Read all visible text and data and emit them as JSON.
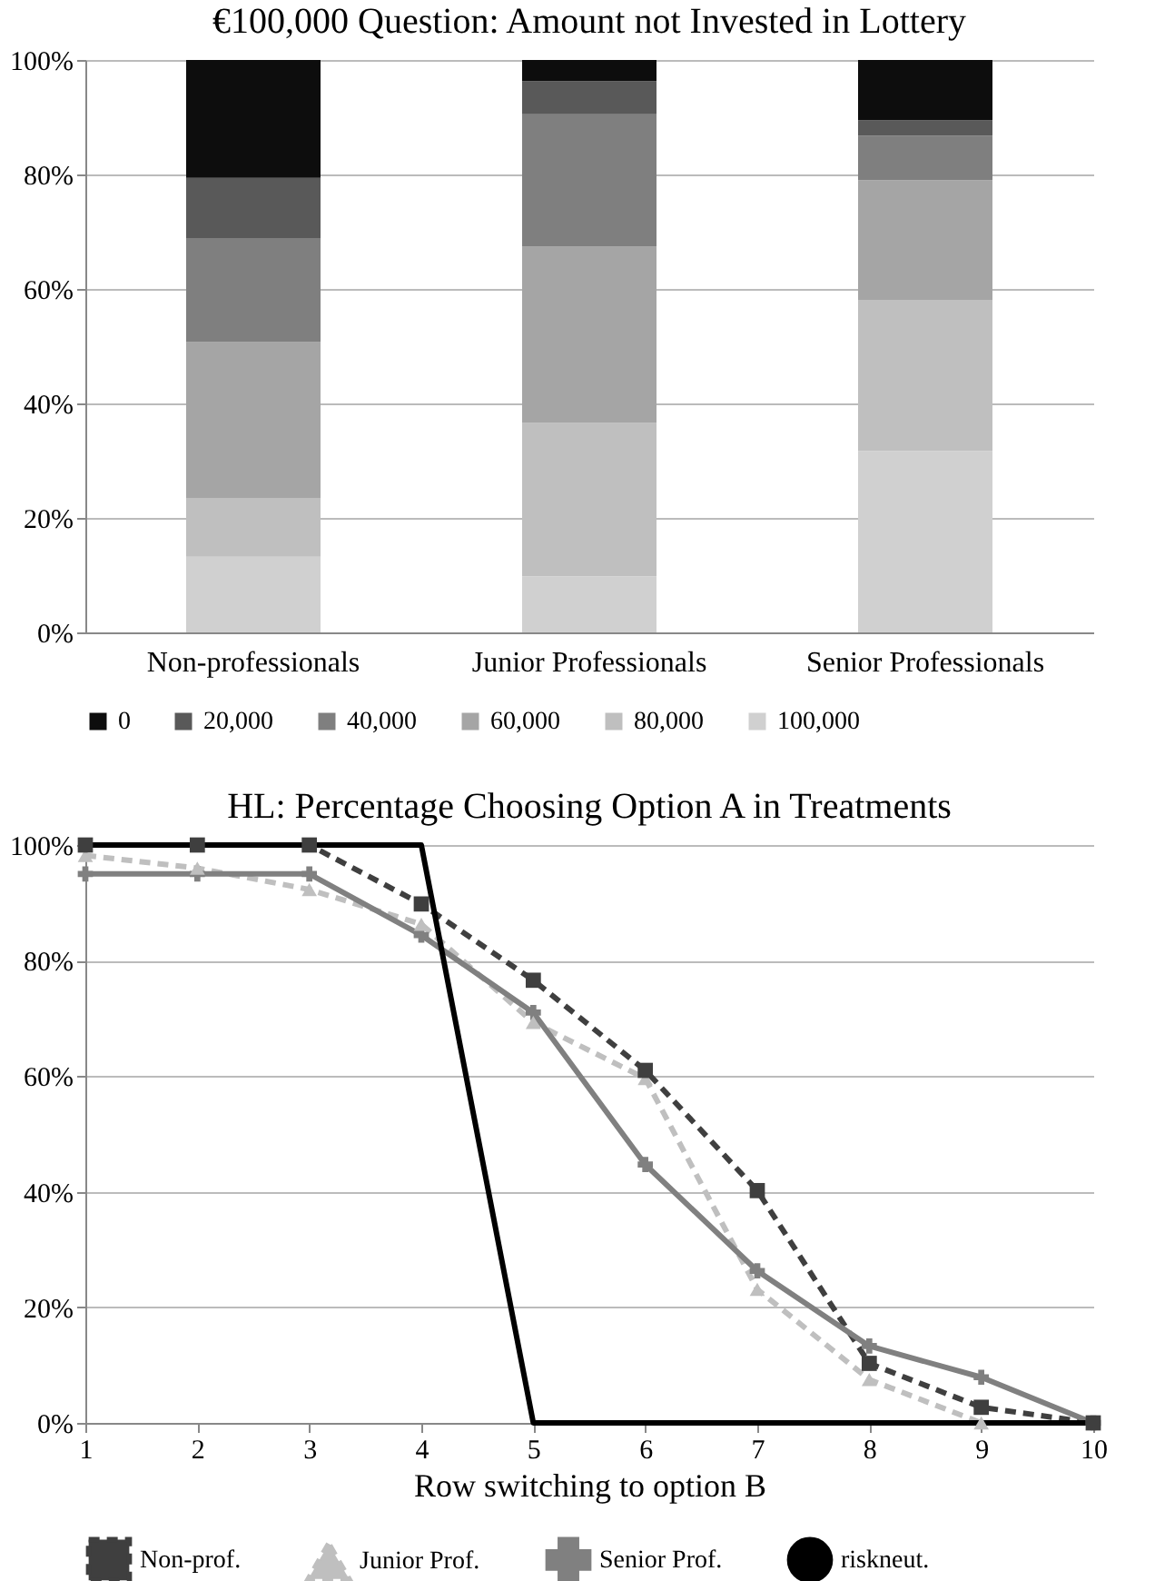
{
  "chart_data": [
    {
      "type": "bar",
      "title": "€100,000 Question: Amount not Invested in Lottery",
      "stacked": true,
      "categories": [
        "Non-professionals",
        "Junior Professionals",
        "Senior Professionals"
      ],
      "series": [
        {
          "name": "100,000",
          "color": "#d0d0d0",
          "values": [
            13.2,
            9.8,
            31.7
          ]
        },
        {
          "name": "80,000",
          "color": "#bfbfbf",
          "values": [
            10.3,
            26.8,
            26.4
          ]
        },
        {
          "name": "60,000",
          "color": "#a5a5a5",
          "values": [
            27.2,
            30.8,
            20.9
          ]
        },
        {
          "name": "40,000",
          "color": "#7f7f7f",
          "values": [
            18.2,
            23.1,
            7.8
          ]
        },
        {
          "name": "20,000",
          "color": "#595959",
          "values": [
            10.5,
            5.8,
            2.7
          ]
        },
        {
          "name": "0",
          "color": "#0d0d0d",
          "values": [
            20.6,
            3.7,
            10.5
          ]
        }
      ],
      "ylim": [
        0,
        100
      ],
      "yticks": [
        {
          "value": 0,
          "label": "0%"
        },
        {
          "value": 20,
          "label": "20%"
        },
        {
          "value": 40,
          "label": "40%"
        },
        {
          "value": 60,
          "label": "60%"
        },
        {
          "value": 80,
          "label": "80%"
        },
        {
          "value": 100,
          "label": "100%"
        }
      ],
      "grid": "y",
      "legend": "bottom"
    },
    {
      "type": "line",
      "title": "HL: Percentage Choosing Option A in Treatments",
      "xlabel": "Row switching to option B",
      "x": [
        1,
        2,
        3,
        4,
        5,
        6,
        7,
        8,
        9,
        10
      ],
      "series": [
        {
          "name": "Non-prof.",
          "color": "#3f3f3f",
          "marker": "square",
          "line_style": "dashed",
          "values": [
            100,
            100,
            100,
            89.8,
            76.6,
            61,
            40.2,
            10.3,
            2.7,
            0
          ]
        },
        {
          "name": "Junior Prof.",
          "color": "#bfbfbf",
          "marker": "triangle",
          "line_style": "dashed",
          "values": [
            98.2,
            96,
            92.3,
            86.3,
            69.3,
            59.6,
            23.1,
            7.5,
            0,
            0
          ]
        },
        {
          "name": "Senior Prof.",
          "color": "#808080",
          "marker": "cross",
          "line_style": "solid",
          "values": [
            95,
            95,
            95,
            84.4,
            71,
            44.7,
            26.3,
            13.3,
            7.9,
            0
          ]
        },
        {
          "name": "riskneut.",
          "color": "#000000",
          "marker": "none",
          "line_style": "solid",
          "values": [
            100,
            100,
            100,
            100,
            0,
            0,
            0,
            0,
            0,
            0
          ]
        }
      ],
      "xlim": [
        1,
        10
      ],
      "xticks": [
        1,
        2,
        3,
        4,
        5,
        6,
        7,
        8,
        9,
        10
      ],
      "ylim": [
        0,
        100
      ],
      "yticks": [
        {
          "value": 0,
          "label": "0%"
        },
        {
          "value": 20,
          "label": "20%"
        },
        {
          "value": 40,
          "label": "40%"
        },
        {
          "value": 60,
          "label": "60%"
        },
        {
          "value": 80,
          "label": "80%"
        },
        {
          "value": 100,
          "label": "100%"
        }
      ],
      "grid": "y",
      "legend": "bottom"
    }
  ]
}
